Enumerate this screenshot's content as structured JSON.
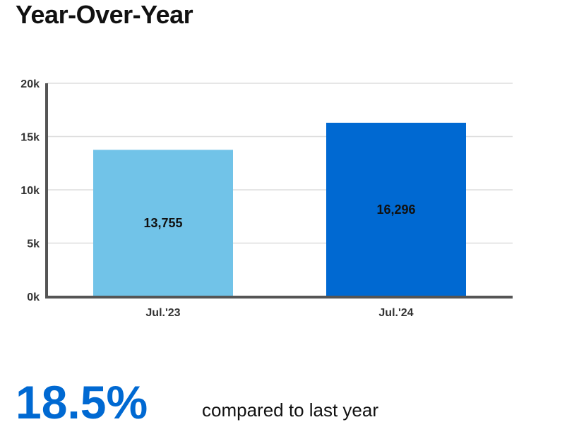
{
  "title": "Year-Over-Year",
  "chart_data": {
    "type": "bar",
    "title": "Year-Over-Year",
    "categories": [
      "Jul.'23",
      "Jul.'24"
    ],
    "values": [
      13755,
      16296
    ],
    "value_labels": [
      "13,755",
      "16,296"
    ],
    "bar_colors": [
      "#71c3e8",
      "#0069d2"
    ],
    "ylim": [
      0,
      20000
    ],
    "yticks": [
      0,
      5000,
      10000,
      15000,
      20000
    ],
    "ytick_labels": [
      "0k",
      "5k",
      "10k",
      "15k",
      "20k"
    ],
    "xlabel": "",
    "ylabel": "",
    "grid": true,
    "legend": "none"
  },
  "summary": {
    "change": "18.5%",
    "text": "compared to last year",
    "accent_color": "#0069d2"
  }
}
